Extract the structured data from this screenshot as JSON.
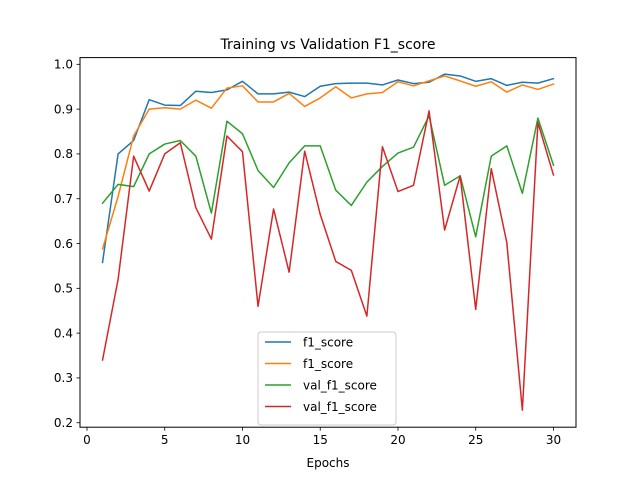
{
  "chart_data": {
    "type": "line",
    "title": "Training vs Validation F1_score",
    "xlabel": "Epochs",
    "ylabel": "",
    "xlim": [
      -0.45,
      31.45
    ],
    "ylim": [
      0.19,
      1.015
    ],
    "xticks": [
      0,
      5,
      10,
      15,
      20,
      25,
      30
    ],
    "yticks": [
      0.2,
      0.3,
      0.4,
      0.5,
      0.6,
      0.7,
      0.8,
      0.9,
      1.0
    ],
    "ytick_labels": [
      "0.2",
      "0.3",
      "0.4",
      "0.5",
      "0.6",
      "0.7",
      "0.8",
      "0.9",
      "1.0"
    ],
    "grid": false,
    "legend_position": "lower center",
    "x": [
      1,
      2,
      3,
      4,
      5,
      6,
      7,
      8,
      9,
      10,
      11,
      12,
      13,
      14,
      15,
      16,
      17,
      18,
      19,
      20,
      21,
      22,
      23,
      24,
      25,
      26,
      27,
      28,
      29,
      30
    ],
    "series": [
      {
        "name": "f1_score",
        "color": "#1f77b4",
        "values": [
          0.558,
          0.8,
          0.83,
          0.921,
          0.909,
          0.908,
          0.94,
          0.937,
          0.943,
          0.962,
          0.934,
          0.934,
          0.938,
          0.928,
          0.951,
          0.957,
          0.958,
          0.958,
          0.954,
          0.965,
          0.957,
          0.96,
          0.978,
          0.974,
          0.962,
          0.968,
          0.953,
          0.96,
          0.958,
          0.968
        ]
      },
      {
        "name": "f1_score",
        "color": "#ff7f0e",
        "values": [
          0.588,
          0.705,
          0.84,
          0.9,
          0.903,
          0.9,
          0.92,
          0.902,
          0.947,
          0.952,
          0.916,
          0.916,
          0.935,
          0.906,
          0.925,
          0.95,
          0.925,
          0.934,
          0.937,
          0.961,
          0.952,
          0.963,
          0.974,
          0.963,
          0.951,
          0.961,
          0.938,
          0.954,
          0.944,
          0.956
        ]
      },
      {
        "name": "val_f1_score",
        "color": "#2ca02c",
        "values": [
          0.69,
          0.732,
          0.727,
          0.8,
          0.822,
          0.83,
          0.795,
          0.668,
          0.873,
          0.845,
          0.763,
          0.725,
          0.78,
          0.818,
          0.818,
          0.719,
          0.685,
          0.737,
          0.772,
          0.802,
          0.815,
          0.885,
          0.73,
          0.751,
          0.615,
          0.795,
          0.818,
          0.712,
          0.88,
          0.775
        ]
      },
      {
        "name": "val_f1_score",
        "color": "#d62728",
        "values": [
          0.34,
          0.52,
          0.795,
          0.717,
          0.8,
          0.825,
          0.68,
          0.61,
          0.84,
          0.805,
          0.46,
          0.677,
          0.536,
          0.806,
          0.665,
          0.56,
          0.54,
          0.438,
          0.816,
          0.716,
          0.73,
          0.896,
          0.63,
          0.751,
          0.453,
          0.767,
          0.602,
          0.228,
          0.87,
          0.753
        ]
      }
    ]
  }
}
